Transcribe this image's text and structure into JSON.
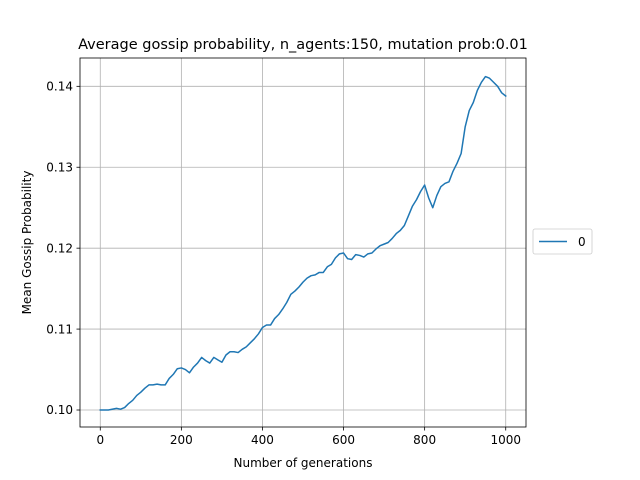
{
  "chart_data": {
    "type": "line",
    "title": "Average gossip probability, n_agents:150, mutation prob:0.01",
    "xlabel": "Number of generations",
    "ylabel": "Mean Gossip Probability",
    "xlim": [
      -50,
      1050
    ],
    "ylim": [
      0.0979,
      0.1435
    ],
    "xticks": [
      0,
      200,
      400,
      600,
      800,
      1000
    ],
    "yticks": [
      0.1,
      0.11,
      0.12,
      0.13,
      0.14
    ],
    "xtick_labels": [
      "0",
      "200",
      "400",
      "600",
      "800",
      "1000"
    ],
    "ytick_labels": [
      "0.10",
      "0.11",
      "0.12",
      "0.13",
      "0.14"
    ],
    "grid": true,
    "legend_position": "center-right-outside",
    "series": [
      {
        "name": "0",
        "color": "#1f77b4",
        "x": [
          0,
          20,
          40,
          50,
          60,
          70,
          80,
          90,
          100,
          110,
          120,
          130,
          140,
          150,
          160,
          170,
          180,
          190,
          200,
          210,
          220,
          230,
          240,
          250,
          260,
          270,
          280,
          290,
          300,
          310,
          320,
          330,
          340,
          350,
          360,
          370,
          380,
          390,
          400,
          410,
          420,
          430,
          440,
          450,
          460,
          470,
          480,
          490,
          500,
          510,
          520,
          530,
          540,
          550,
          560,
          570,
          580,
          590,
          600,
          610,
          620,
          630,
          640,
          650,
          660,
          670,
          680,
          690,
          700,
          710,
          720,
          730,
          740,
          750,
          760,
          770,
          780,
          790,
          800,
          810,
          820,
          830,
          840,
          850,
          860,
          870,
          880,
          890,
          900,
          910,
          920,
          930,
          940,
          950,
          960,
          970,
          980,
          990,
          1000
        ],
        "y": [
          0.1,
          0.1,
          0.1002,
          0.1001,
          0.1003,
          0.1008,
          0.1012,
          0.1018,
          0.1022,
          0.1027,
          0.1031,
          0.1031,
          0.1032,
          0.1031,
          0.1031,
          0.1039,
          0.1044,
          0.1051,
          0.1052,
          0.105,
          0.1046,
          0.1053,
          0.1058,
          0.1065,
          0.1061,
          0.1058,
          0.1065,
          0.1062,
          0.1059,
          0.1068,
          0.1072,
          0.1072,
          0.1071,
          0.1075,
          0.1078,
          0.1083,
          0.1088,
          0.1094,
          0.1102,
          0.1105,
          0.1105,
          0.1113,
          0.1118,
          0.1125,
          0.1133,
          0.1143,
          0.1147,
          0.1152,
          0.1158,
          0.1163,
          0.1166,
          0.1167,
          0.117,
          0.117,
          0.1177,
          0.118,
          0.1188,
          0.1193,
          0.1194,
          0.1187,
          0.1186,
          0.1192,
          0.1191,
          0.1189,
          0.1193,
          0.1194,
          0.1199,
          0.1203,
          0.1205,
          0.1207,
          0.1212,
          0.1218,
          0.1222,
          0.1228,
          0.124,
          0.1252,
          0.126,
          0.127,
          0.1278,
          0.1262,
          0.125,
          0.1265,
          0.1276,
          0.128,
          0.1282,
          0.1295,
          0.1305,
          0.1317,
          0.135,
          0.137,
          0.138,
          0.1395,
          0.1405,
          0.1412,
          0.141,
          0.1405,
          0.14,
          0.1392,
          0.1388
        ]
      }
    ]
  }
}
